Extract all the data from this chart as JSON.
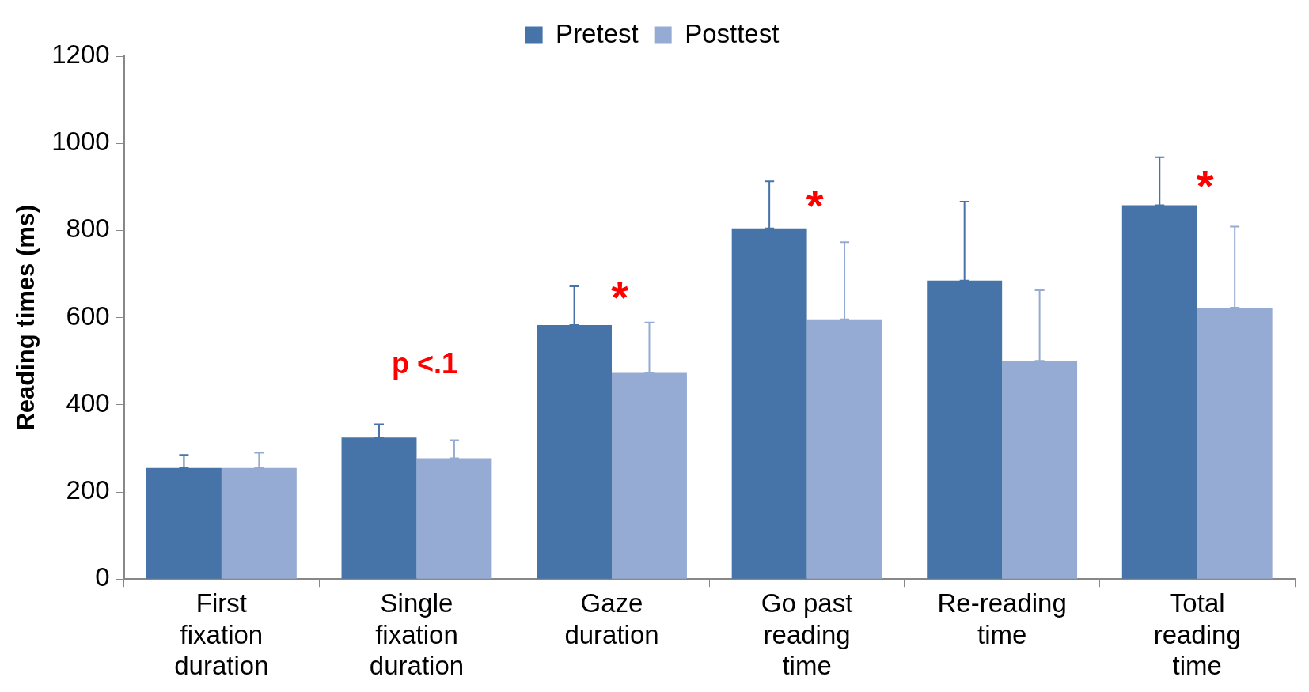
{
  "chart_data": {
    "type": "bar",
    "ylabel": "Reading times (ms)",
    "categories": [
      "First fixation duration",
      "Single fixation duration",
      "Gaze duration",
      "Go past reading time",
      "Re-reading time",
      "Total reading time"
    ],
    "series": [
      {
        "name": "Pretest",
        "color": "#4674a8",
        "values": [
          255,
          325,
          583,
          805,
          685,
          858
        ],
        "errors": [
          [
            255,
            285
          ],
          [
            325,
            355
          ],
          [
            583,
            672
          ],
          [
            805,
            913
          ],
          [
            685,
            866
          ],
          [
            858,
            968
          ]
        ]
      },
      {
        "name": "Posttest",
        "color": "#95abd3",
        "values": [
          255,
          277,
          473,
          596,
          501,
          623
        ],
        "errors": [
          [
            255,
            290
          ],
          [
            277,
            319
          ],
          [
            473,
            589
          ],
          [
            596,
            773
          ],
          [
            501,
            663
          ],
          [
            623,
            809
          ]
        ]
      }
    ],
    "ylim": [
      0,
      1200
    ],
    "yticks": [
      0,
      200,
      400,
      600,
      800,
      1000,
      1200
    ],
    "grid": false,
    "legend": "top",
    "annotations": [
      "p <.1",
      "*",
      "*",
      "*"
    ]
  }
}
